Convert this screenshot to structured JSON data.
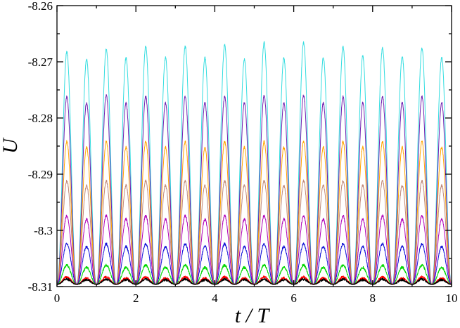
{
  "chart_data": {
    "type": "line",
    "title": "",
    "xlabel": "t / T",
    "ylabel": "U",
    "xlim": [
      0,
      10
    ],
    "ylim": [
      -8.31,
      -8.26
    ],
    "x_ticks": [
      0,
      2,
      4,
      6,
      8,
      10
    ],
    "x_tick_labels": [
      "0",
      "2",
      "4",
      "6",
      "8",
      "10"
    ],
    "y_ticks": [
      -8.31,
      -8.3,
      -8.29,
      -8.28,
      -8.27,
      -8.26
    ],
    "y_tick_labels": [
      "-8.31",
      "-8.3",
      "-8.29",
      "-8.28",
      "-8.27",
      "-8.26"
    ],
    "grid": false,
    "legend": "none",
    "period": 1.0,
    "peak_times": [
      0.25,
      0.75,
      1.25,
      1.75,
      2.25,
      2.75,
      3.25,
      3.75,
      4.25,
      4.75,
      5.25,
      5.75,
      6.25,
      6.75,
      7.25,
      7.75,
      8.25,
      8.75,
      9.25,
      9.75
    ],
    "series": [
      {
        "color": "#000000",
        "baseline": -8.3096,
        "peaks": [
          -8.3087,
          -8.3088,
          -8.3087,
          -8.3088,
          -8.3087,
          -8.3088,
          -8.3087,
          -8.3088,
          -8.3087,
          -8.3088,
          -8.3087,
          -8.3088,
          -8.3087,
          -8.3088,
          -8.3087,
          -8.3088,
          -8.3087,
          -8.3088,
          -8.3087,
          -8.3088
        ]
      },
      {
        "color": "#ff0000",
        "baseline": -8.3096,
        "peaks": [
          -8.3083,
          -8.3085,
          -8.3083,
          -8.3085,
          -8.3083,
          -8.3085,
          -8.3083,
          -8.3085,
          -8.3083,
          -8.3085,
          -8.3083,
          -8.3085,
          -8.3083,
          -8.3085,
          -8.3083,
          -8.3085,
          -8.3083,
          -8.3085,
          -8.3083,
          -8.3085
        ]
      },
      {
        "color": "#00d800",
        "baseline": -8.3096,
        "peaks": [
          -8.3062,
          -8.3066,
          -8.3062,
          -8.3066,
          -8.3062,
          -8.3066,
          -8.3062,
          -8.3066,
          -8.3062,
          -8.3066,
          -8.3062,
          -8.3066,
          -8.3062,
          -8.3066,
          -8.3062,
          -8.3066,
          -8.3062,
          -8.3066,
          -8.3062,
          -8.3066
        ]
      },
      {
        "color": "#1010d8",
        "baseline": -8.3096,
        "peaks": [
          -8.3024,
          -8.3029,
          -8.3024,
          -8.3029,
          -8.3024,
          -8.3029,
          -8.3024,
          -8.3029,
          -8.3024,
          -8.3029,
          -8.3024,
          -8.3029,
          -8.3024,
          -8.3029,
          -8.3024,
          -8.3029,
          -8.3024,
          -8.3029,
          -8.3024,
          -8.3029
        ]
      },
      {
        "color": "#b000b8",
        "baseline": -8.3096,
        "peaks": [
          -8.2974,
          -8.298,
          -8.2974,
          -8.298,
          -8.2974,
          -8.298,
          -8.2974,
          -8.298,
          -8.2974,
          -8.298,
          -8.2974,
          -8.298,
          -8.2974,
          -8.298,
          -8.2974,
          -8.298,
          -8.2974,
          -8.298,
          -8.2974,
          -8.298
        ]
      },
      {
        "color": "#c08878",
        "baseline": -8.3096,
        "peaks": [
          -8.2912,
          -8.292,
          -8.2912,
          -8.292,
          -8.2912,
          -8.292,
          -8.2912,
          -8.292,
          -8.2912,
          -8.292,
          -8.2912,
          -8.292,
          -8.2912,
          -8.292,
          -8.2912,
          -8.292,
          -8.2912,
          -8.292,
          -8.2912,
          -8.292
        ]
      },
      {
        "color": "#ffa500",
        "baseline": -8.3096,
        "peaks": [
          -8.2842,
          -8.2852,
          -8.2842,
          -8.2852,
          -8.2842,
          -8.2852,
          -8.2842,
          -8.2852,
          -8.2842,
          -8.2852,
          -8.2842,
          -8.2852,
          -8.2842,
          -8.2852,
          -8.2842,
          -8.2852,
          -8.2842,
          -8.2852,
          -8.2842,
          -8.2852
        ]
      },
      {
        "color": "#7020b0",
        "baseline": -8.3096,
        "peaks": [
          -8.2762,
          -8.2773,
          -8.276,
          -8.2773,
          -8.2762,
          -8.2773,
          -8.2762,
          -8.2773,
          -8.2762,
          -8.2773,
          -8.276,
          -8.2773,
          -8.276,
          -8.2773,
          -8.2762,
          -8.2773,
          -8.2762,
          -8.2773,
          -8.2762,
          -8.2773
        ]
      },
      {
        "color": "#33dde0",
        "baseline": -8.3096,
        "peaks": [
          -8.2682,
          -8.2696,
          -8.2678,
          -8.2693,
          -8.2673,
          -8.2693,
          -8.2673,
          -8.2693,
          -8.267,
          -8.2696,
          -8.2666,
          -8.2693,
          -8.2666,
          -8.2693,
          -8.2673,
          -8.269,
          -8.2676,
          -8.269,
          -8.2676,
          -8.2693
        ]
      }
    ]
  }
}
